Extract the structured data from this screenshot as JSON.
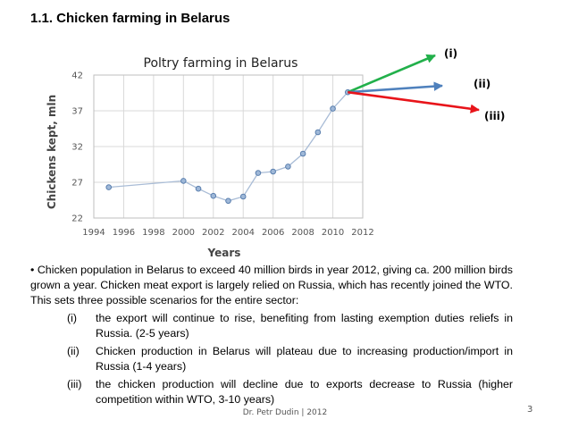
{
  "slide": {
    "heading": "1.1. Chicken farming in Belarus",
    "footer": "Dr. Petr Dudin | 2012",
    "page_number": "3"
  },
  "chart_data": {
    "type": "line",
    "title": "Poltry farming in Belarus",
    "xlabel": "Years",
    "ylabel": "Chickens kept, mln",
    "xlim": [
      1994,
      2012
    ],
    "ylim": [
      22,
      42
    ],
    "x_ticks": [
      1994,
      1996,
      1998,
      2000,
      2002,
      2004,
      2006,
      2008,
      2010,
      2012
    ],
    "y_ticks": [
      22,
      27,
      32,
      37,
      42
    ],
    "grid": true,
    "series": [
      {
        "x": [
          1995,
          2000,
          2001,
          2002,
          2003,
          2004,
          2005,
          2006,
          2007,
          2008,
          2009,
          2010,
          2011
        ],
        "values": [
          26.3,
          27.2,
          26.1,
          25.1,
          24.4,
          25.0,
          28.3,
          28.5,
          29.2,
          31.0,
          34.0,
          37.3,
          39.6
        ]
      }
    ],
    "scenario_arrows": [
      {
        "label": "(i)",
        "direction": "rise",
        "color": "#22b04b"
      },
      {
        "label": "(ii)",
        "direction": "plateau",
        "color": "#4f81bd"
      },
      {
        "label": "(iii)",
        "direction": "decline",
        "color": "#e8141a"
      }
    ],
    "line_color": "#a9bcd6",
    "marker_color": "#9fb8d8"
  },
  "text": {
    "intro": "• Chicken population in Belarus to exceed 40 million birds in year 2012, giving ca. 200 million birds grown a year. Chicken meat export is largely relied on Russia, which has recently joined the WTO. This sets three possible scenarios for the entire sector:",
    "scenarios": [
      {
        "num": "(i)",
        "text": "the export will continue to rise, benefiting from lasting exemption duties reliefs in Russia. (2-5 years)"
      },
      {
        "num": "(ii)",
        "text": "Chicken production in Belarus will plateau due to increasing production/import in Russia (1-4 years)"
      },
      {
        "num": "(iii)",
        "text": "the chicken production will decline due to exports decrease to Russia (higher competition within WTO, 3-10 years)"
      }
    ]
  }
}
